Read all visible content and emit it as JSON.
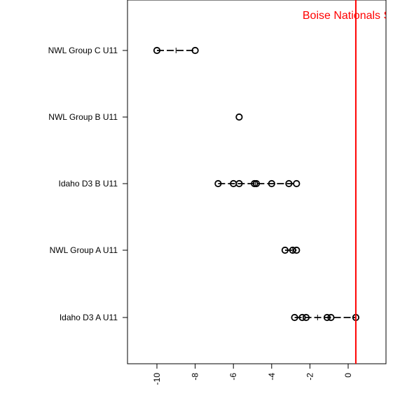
{
  "chart_data": {
    "type": "dot-range",
    "title": "",
    "xlabel": "",
    "ylabel": "",
    "xlim": [
      -11.5,
      2
    ],
    "x_ticks": [
      -10,
      -8,
      -6,
      -4,
      -2,
      0
    ],
    "x_tick_labels": [
      "-10",
      "-8",
      "-6",
      "-4",
      "-2",
      "0"
    ],
    "categories": [
      "Idaho D3 A U11",
      "NWL Group A U11",
      "Idaho D3 B U11",
      "NWL Group B U11",
      "NWL Group C U11"
    ],
    "series": [
      {
        "category": "Idaho D3 A U11",
        "points": [
          -2.8,
          -2.4,
          -2.2,
          -1.1,
          -0.9,
          0.4
        ],
        "median": -1.6
      },
      {
        "category": "NWL Group A U11",
        "points": [
          -3.3,
          -2.9,
          -2.7
        ],
        "median": -2.9
      },
      {
        "category": "Idaho D3 B U11",
        "points": [
          -6.8,
          -6.0,
          -5.7,
          -4.9,
          -4.8,
          -4.0,
          -3.1,
          -2.7
        ],
        "median": -4.85
      },
      {
        "category": "NWL Group B U11",
        "points": [
          -5.7
        ],
        "median": -5.7
      },
      {
        "category": "NWL Group C U11",
        "points": [
          -10.0,
          -8.0
        ],
        "median": -9.0
      }
    ],
    "reference_line": {
      "x": 0.4,
      "label": "Boise Nationals SC F",
      "color": "#ff0000"
    },
    "grid": false,
    "legend": "none"
  }
}
